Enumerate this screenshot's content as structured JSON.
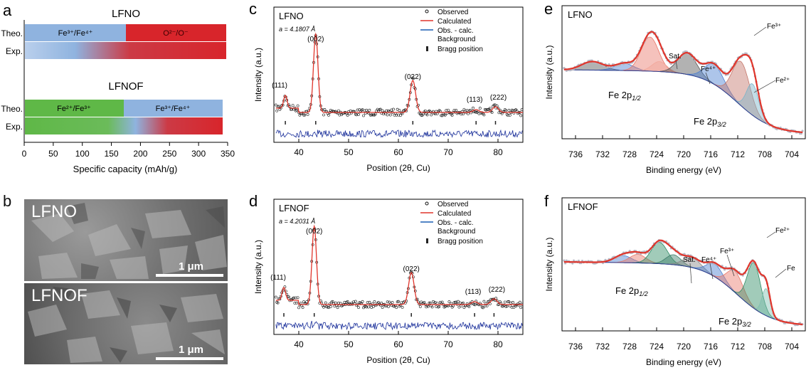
{
  "figure": {
    "panel_letters": [
      "a",
      "b",
      "c",
      "d",
      "e",
      "f"
    ],
    "colors": {
      "blue_band": "#8fb3df",
      "red_band": "#d8252b",
      "green_band": "#5fb847",
      "calc_line": "#e0352b",
      "diff_line": "#1a2f9a",
      "bragg": "#222"
    }
  },
  "panel_a": {
    "top_title": "LFNO",
    "bottom_title": "LFNOF",
    "row_theo": "Theo.",
    "row_exp": "Exp.",
    "lfno_seg1": "Fe³⁺/Fe⁴⁺",
    "lfno_seg2": "O²⁻/O⁻",
    "lfnof_seg1": "Fe²⁺/Fe³⁺",
    "lfnof_seg2": "Fe³⁺/Fe⁴⁺",
    "x_ticks": [
      "0",
      "50",
      "100",
      "150",
      "200",
      "250",
      "300",
      "350"
    ],
    "xlabel": "Specific capacity (mAh/g)"
  },
  "panel_b": {
    "top_label": "LFNO",
    "bottom_label": "LFNOF",
    "scale": "1 μm"
  },
  "xrd_common": {
    "legend": [
      "Observed",
      "Calculated",
      "Obs. - calc.",
      "Background",
      "Bragg position"
    ],
    "ylabel": "Intensity (a.u.)",
    "xlabel": "Position (2θ, Cu)",
    "x_ticks": [
      "40",
      "50",
      "60",
      "70",
      "80"
    ],
    "peaks": [
      "(111)",
      "(002)",
      "(022)",
      "(113)",
      "(222)"
    ]
  },
  "panel_c": {
    "sample": "LFNO",
    "lattice": "a = 4.1807 Å"
  },
  "panel_d": {
    "sample": "LFNOF",
    "lattice": "a = 4.2031 Å"
  },
  "xps_common": {
    "ylabel": "Intensity (a.u.)",
    "xlabel": "Binding energy (eV)",
    "x_ticks": [
      "736",
      "732",
      "728",
      "724",
      "720",
      "716",
      "712",
      "708",
      "704"
    ],
    "fe2p12": "Fe 2p",
    "fe2p12_sub": "1/2",
    "fe2p32": "Fe 2p",
    "fe2p32_sub": "3/2"
  },
  "panel_e": {
    "sample": "LFNO",
    "labels": [
      "Fe³⁺",
      "Sat.",
      "Fe⁴⁺",
      "Fe²⁺"
    ]
  },
  "panel_f": {
    "sample": "LFNOF",
    "labels": [
      "Fe²⁺",
      "Fe³⁺",
      "Sat.",
      "Fe⁴⁺",
      "Fe"
    ]
  },
  "chart_data": [
    {
      "type": "bar",
      "title": "LFNO",
      "xlabel": "Specific capacity (mAh/g)",
      "xlim": [
        0,
        350
      ],
      "categories": [
        "Theo.",
        "Exp."
      ],
      "series": [
        {
          "name": "Fe³⁺/Fe⁴⁺",
          "values": [
            175,
            0
          ]
        },
        {
          "name": "O²⁻/O⁻",
          "values": [
            175,
            0
          ]
        }
      ],
      "exp_total": 350
    },
    {
      "type": "bar",
      "title": "LFNOF",
      "xlabel": "Specific capacity (mAh/g)",
      "xlim": [
        0,
        350
      ],
      "categories": [
        "Theo.",
        "Exp."
      ],
      "series": [
        {
          "name": "Fe²⁺/Fe³⁺",
          "values": [
            172,
            0
          ]
        },
        {
          "name": "Fe³⁺/Fe⁴⁺",
          "values": [
            170,
            0
          ]
        }
      ],
      "exp_total": 343
    },
    {
      "type": "line",
      "title": "LFNO",
      "xlabel": "Position (2θ, Cu)",
      "ylabel": "Intensity (a.u.)",
      "xlim": [
        35,
        85
      ],
      "peaks_2theta": [
        37.3,
        43.4,
        62.9,
        75.6,
        79.5
      ],
      "bragg_positions": [
        37.3,
        43.4,
        62.9,
        75.6,
        79.5
      ]
    },
    {
      "type": "line",
      "title": "LFNOF",
      "xlabel": "Position (2θ, Cu)",
      "ylabel": "Intensity (a.u.)",
      "xlim": [
        35,
        85
      ],
      "peaks_2theta": [
        37.1,
        43.1,
        62.5,
        75.3,
        79.1
      ],
      "bragg_positions": [
        37.1,
        43.1,
        62.5,
        75.3,
        79.1
      ]
    },
    {
      "type": "line",
      "title": "LFNO",
      "xlabel": "Binding energy (eV)",
      "ylabel": "Intensity (a.u.)",
      "xlim": [
        738,
        702
      ],
      "components_eV": [
        733.5,
        728.8,
        725.0,
        719.5,
        715.5,
        711.5,
        709.8
      ]
    },
    {
      "type": "line",
      "title": "LFNOF",
      "xlabel": "Binding energy (eV)",
      "ylabel": "Intensity (a.u.)",
      "xlim": [
        738,
        702
      ],
      "components_eV": [
        729.0,
        726.8,
        723.6,
        721.5,
        718.8,
        715.4,
        712.4,
        709.6,
        707.8
      ]
    }
  ]
}
